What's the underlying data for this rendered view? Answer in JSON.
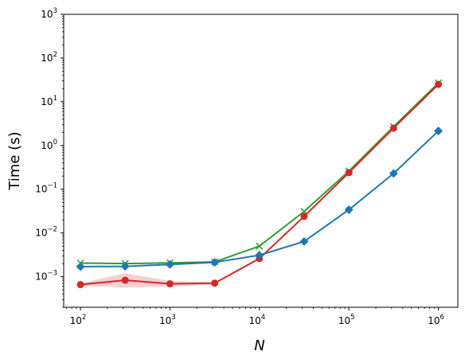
{
  "chart_data": {
    "type": "line",
    "title": "",
    "xlabel": "N",
    "ylabel": "Time (s)",
    "xscale": "log",
    "yscale": "log",
    "xlim": [
      65,
      1650000
    ],
    "ylim": [
      0.0002,
      1000
    ],
    "grid": false,
    "x": [
      100,
      316,
      1000,
      3162,
      10000,
      31623,
      100000,
      316228,
      1000000
    ],
    "x_ticks": [
      {
        "value": 100,
        "base": "10",
        "exp": "2"
      },
      {
        "value": 1000,
        "base": "10",
        "exp": "3"
      },
      {
        "value": 10000,
        "base": "10",
        "exp": "4"
      },
      {
        "value": 100000,
        "base": "10",
        "exp": "5"
      },
      {
        "value": 1000000,
        "base": "10",
        "exp": "6"
      }
    ],
    "y_ticks": [
      {
        "value": 0.001,
        "base": "10",
        "exp": "−3"
      },
      {
        "value": 0.01,
        "base": "10",
        "exp": "−2"
      },
      {
        "value": 0.1,
        "base": "10",
        "exp": "−1"
      },
      {
        "value": 1,
        "base": "10",
        "exp": "0"
      },
      {
        "value": 10,
        "base": "10",
        "exp": "1"
      },
      {
        "value": 100,
        "base": "10",
        "exp": "2"
      },
      {
        "value": 1000,
        "base": "10",
        "exp": "3"
      }
    ],
    "series": [
      {
        "color": "#2ca02c",
        "marker": "x",
        "values": [
          0.00205,
          0.002,
          0.00207,
          0.00218,
          0.005,
          0.031,
          0.26,
          2.7,
          27
        ]
      },
      {
        "color": "#d62728",
        "marker": "circle",
        "values": [
          0.00066,
          0.00083,
          0.00069,
          0.00071,
          0.0026,
          0.024,
          0.24,
          2.5,
          25
        ],
        "band_low": [
          0.00061,
          0.00057,
          0.00059,
          0.00067,
          0.0026,
          0.024,
          0.24,
          2.5,
          25
        ],
        "band_high": [
          0.00071,
          0.0012,
          0.0008,
          0.00075,
          0.0026,
          0.024,
          0.24,
          2.5,
          25
        ]
      },
      {
        "color": "#1f77b4",
        "marker": "diamond",
        "values": [
          0.0017,
          0.00172,
          0.0019,
          0.00213,
          0.0031,
          0.0064,
          0.034,
          0.23,
          2.15
        ]
      }
    ]
  }
}
